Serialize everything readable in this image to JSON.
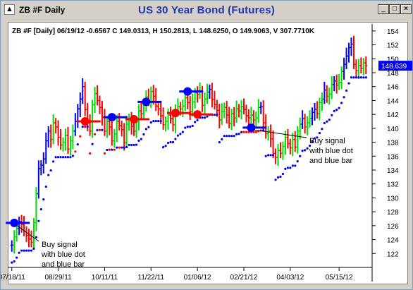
{
  "window": {
    "app_label": "ZB #F Daily",
    "title": "US 30 Year Bond (Futures)",
    "controls": [
      "minimize",
      "maximize",
      "close"
    ]
  },
  "chart_data": {
    "type": "line",
    "header": "ZB #F [Daily] 06/19/12 -0.6567 C 149.0313, H 150.2813, L 148.6250, O 149.9063, V 307.7710K",
    "last_value_label": "148.639",
    "ylim": [
      120,
      155
    ],
    "yticks": [
      122,
      124,
      126,
      128,
      130,
      132,
      134,
      136,
      138,
      140,
      142,
      144,
      146,
      148,
      150,
      152,
      154
    ],
    "x_tick_labels": [
      "07/18/11",
      "08/29/11",
      "10/11/11",
      "11/22/11",
      "01/06/12",
      "02/21/12",
      "04/03/12",
      "05/15/12"
    ],
    "colors": {
      "up": "#00dd00",
      "down": "#ff0000",
      "neutral": "#0000ee",
      "accent": "#0000ff",
      "last_box": "#0000ff"
    },
    "series": [
      {
        "close": [
          123.2,
          124.4,
          125.6,
          126.6,
          126.2,
          125.2,
          124.6,
          124.1,
          123.6,
          126.4,
          130.6,
          134.2,
          134.7,
          135.6,
          138.2,
          139.6,
          138.4,
          140.8,
          140.2,
          138.7,
          137.6,
          138.0,
          139.0,
          137.0,
          138.2,
          139.6,
          141.0,
          142.8,
          144.2,
          146.0,
          142.7,
          140.8,
          139.6,
          143.4,
          145.0,
          144.0,
          143.0,
          141.6,
          139.6,
          141.0,
          140.2,
          138.2,
          139.2,
          141.0,
          140.4,
          139.8,
          138.0,
          140.6,
          141.4,
          140.3,
          139.6,
          140.9,
          142.5,
          142.1,
          143.6,
          144.5,
          143.9,
          145.3,
          144.6,
          143.2,
          142.8,
          141.8,
          140.5,
          141.0,
          141.9,
          141.4,
          140.5,
          142.5,
          143.1,
          142.8,
          143.2,
          144.4,
          143.7,
          142.4,
          143.8,
          145.1,
          144.9,
          145.4,
          143.3,
          144.2,
          145.2,
          145.6,
          144.2,
          143.4,
          142.6,
          141.2,
          142.4,
          143.0,
          141.9,
          140.7,
          142.1,
          141.5,
          142.8,
          142.5,
          143.1,
          142.7,
          141.8,
          141.5,
          141.9,
          141.2,
          141.5,
          143.0,
          143.1,
          140.8,
          139.2,
          139.6,
          138.5,
          136.4,
          135.8,
          136.8,
          136.4,
          137.4,
          138.7,
          137.8,
          137.2,
          138.4,
          137.3,
          139.6,
          140.6,
          141.4,
          140.2,
          140.8,
          141.4,
          142.3,
          142.7,
          142.1,
          143.7,
          144.2,
          145.5,
          144.6,
          144.9,
          146.3,
          146.8,
          146.2,
          146.6,
          148.2,
          149.2,
          150.4,
          151.6,
          152.1,
          149.2,
          148.3,
          149.0,
          148.6,
          149.4,
          149.0
        ],
        "signals": [
          {
            "bar": 1,
            "level": 126.4,
            "color": "#0000ff",
            "label": "Buy signal with blue dot and blue bar"
          },
          {
            "bar": 30,
            "level": 141.0,
            "color": "#ff0000"
          },
          {
            "bar": 41,
            "level": 141.6,
            "color": "#0000ff"
          },
          {
            "bar": 50,
            "level": 141.3,
            "color": "#ff0000"
          },
          {
            "bar": 55,
            "level": 143.8,
            "color": "#0000ff"
          },
          {
            "bar": 67,
            "level": 142.2,
            "color": "#ff0000"
          },
          {
            "bar": 72,
            "level": 145.3,
            "color": "#0000ff"
          },
          {
            "bar": 76,
            "level": 142.0,
            "color": "#ff0000"
          },
          {
            "bar": 98,
            "level": 140.1,
            "color": "#0000ff",
            "label": "Buy signal with blue dot and blue bar"
          }
        ]
      }
    ],
    "annotations": [
      {
        "lines": [
          "Buy signal",
          "with blue dot",
          "and blue bar"
        ]
      },
      {
        "lines": [
          "Buy signal",
          "with blue dot",
          "and blue bar"
        ]
      }
    ]
  }
}
